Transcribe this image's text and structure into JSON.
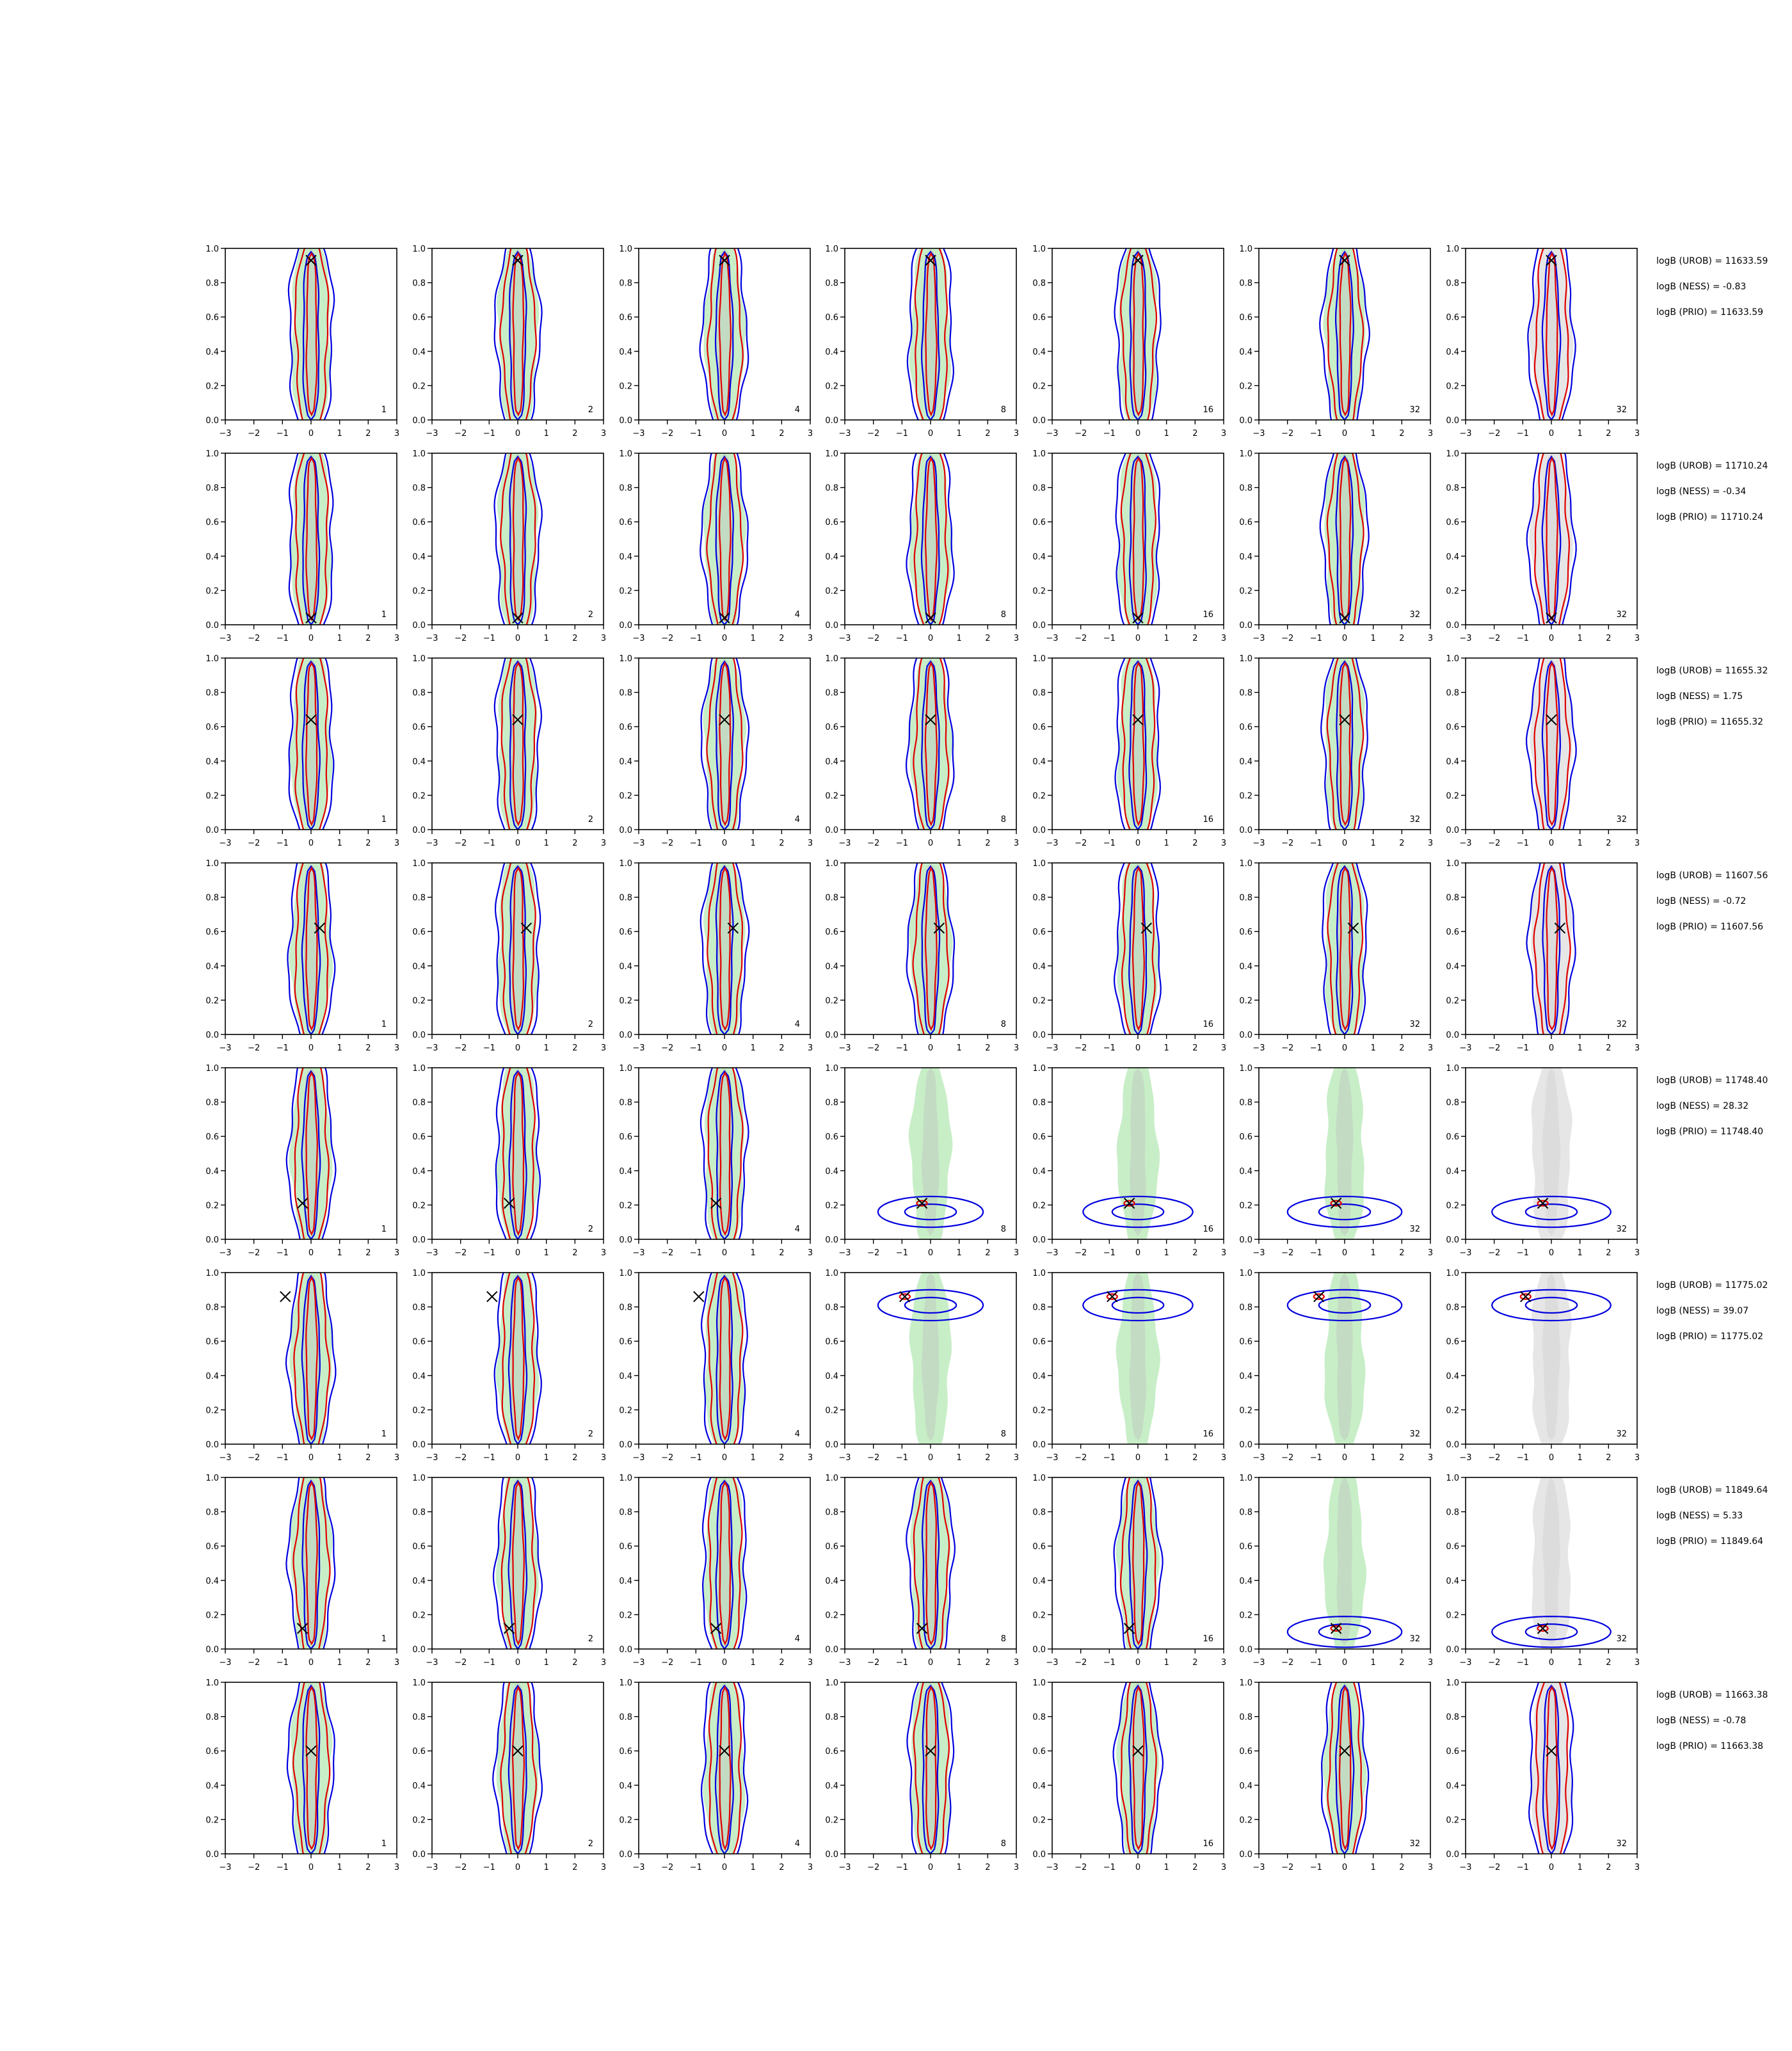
{
  "chart_data": {
    "type": "contour-grid",
    "grid_rows": 8,
    "grid_cols": 7,
    "xlim": [
      -3,
      3
    ],
    "ylim": [
      0.0,
      1.0
    ],
    "x_ticks": [
      "−3",
      "−2",
      "−1",
      "0",
      "1",
      "2",
      "3"
    ],
    "y_ticks": [
      "0.0",
      "0.2",
      "0.4",
      "0.6",
      "0.8",
      "1.0"
    ],
    "column_labels": [
      "1",
      "2",
      "4",
      "8",
      "16",
      "32",
      "32"
    ],
    "colors": {
      "green_fill": "#c8eec8",
      "gray_fill": "#e6e6e6",
      "inner_fill": "#c0cec0",
      "red_contour": "#e00000",
      "blue_contour": "#0000e0",
      "marker": "#000000"
    },
    "rows": [
      {
        "marker": [
          0.0,
          0.93
        ],
        "mode": "vertical",
        "logB_lines": [
          "logB (UROB) = 11633.59",
          "logB (NESS) = -0.83",
          "logB (PRIO) = 11633.59"
        ]
      },
      {
        "marker": [
          0.0,
          0.04
        ],
        "mode": "vertical",
        "logB_lines": [
          "logB (UROB) = 11710.24",
          "logB (NESS) = -0.34",
          "logB (PRIO) = 11710.24"
        ]
      },
      {
        "marker": [
          0.0,
          0.64
        ],
        "mode": "vertical",
        "logB_lines": [
          "logB (UROB) = 11655.32",
          "logB (NESS) = 1.75",
          "logB (PRIO) = 11655.32"
        ]
      },
      {
        "marker": [
          0.3,
          0.62
        ],
        "mode": "vertical",
        "logB_lines": [
          "logB (UROB) = 11607.56",
          "logB (NESS) = -0.72",
          "logB (PRIO) = 11607.56"
        ]
      },
      {
        "marker": [
          -0.3,
          0.21
        ],
        "mode": "horizontal-from-col-4",
        "logB_lines": [
          "logB (UROB) = 11748.40",
          "logB (NESS) = 28.32",
          "logB (PRIO) = 11748.40"
        ]
      },
      {
        "marker": [
          -0.9,
          0.86
        ],
        "mode": "horizontal-from-col-4",
        "logB_lines": [
          "logB (UROB) = 11775.02",
          "logB (NESS) = 39.07",
          "logB (PRIO) = 11775.02"
        ]
      },
      {
        "marker": [
          -0.3,
          0.12
        ],
        "mode": "horizontal-from-col-6",
        "logB_lines": [
          "logB (UROB) = 11849.64",
          "logB (NESS) = 5.33",
          "logB (PRIO) = 11849.64"
        ]
      },
      {
        "marker": [
          0.0,
          0.6
        ],
        "mode": "vertical",
        "logB_lines": [
          "logB (UROB) = 11663.38",
          "logB (NESS) = -0.78",
          "logB (PRIO) = 11663.38"
        ]
      }
    ]
  }
}
